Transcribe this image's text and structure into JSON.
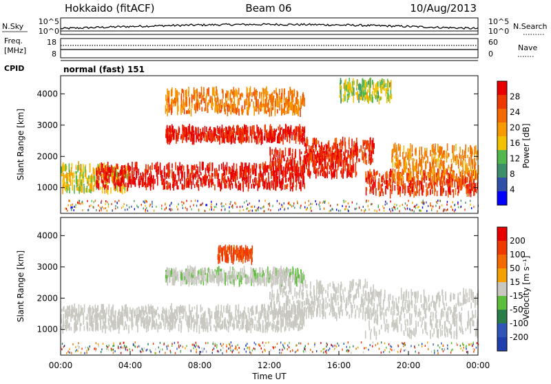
{
  "header": {
    "title": "Hokkaido (fitACF)",
    "beam": "Beam 06",
    "date": "10/Aug/2013"
  },
  "noise_panel": {
    "left_label": "N.Sky",
    "right_label": "N.Search",
    "left_ticks": [
      "10^5",
      "10^0"
    ],
    "right_ticks": [
      "10^5",
      "10^0"
    ]
  },
  "freq_panel": {
    "left_label_line1": "Freq.",
    "left_label_line2": "[MHz]",
    "left_ticks": [
      "18",
      "8"
    ],
    "right_label": "Nave",
    "right_ticks": [
      "60",
      "0"
    ]
  },
  "cpid_panel": {
    "label": "CPID",
    "text": "normal (fast) 151"
  },
  "colors": {
    "power_scale": [
      "#0000ff",
      "#2f4fa8",
      "#3d8f6a",
      "#52b84d",
      "#f2c200",
      "#f79a00",
      "#f26a00",
      "#ee3a00",
      "#e80000"
    ],
    "velocity_scale": [
      "#1f3fae",
      "#2f55b8",
      "#2a7d48",
      "#5cbe3a",
      "#c8c8c0",
      "#f5a000",
      "#f26a00",
      "#ee3a00",
      "#e80000"
    ]
  },
  "chart_data": [
    {
      "type": "heatmap",
      "name": "power",
      "ylabel": "Slant Range [km]",
      "ylim": [
        180,
        4580
      ],
      "xlim": [
        0,
        24
      ],
      "yticks": [
        "1000",
        "2000",
        "3000",
        "4000"
      ],
      "colorbar": {
        "label": "Power [dB]",
        "ticks": [
          "4",
          "8",
          "12",
          "16",
          "20",
          "24",
          "28"
        ],
        "range": [
          0,
          32
        ]
      },
      "regions": [
        {
          "t0": 0.0,
          "t1": 4.0,
          "r0": 900,
          "r1": 1700,
          "level": 16
        },
        {
          "t0": 2.0,
          "t1": 14.0,
          "r0": 1000,
          "r1": 1700,
          "level": 30
        },
        {
          "t0": 12.0,
          "t1": 17.0,
          "r0": 1400,
          "r1": 2200,
          "level": 29
        },
        {
          "t0": 14.0,
          "t1": 18.0,
          "r0": 1800,
          "r1": 2500,
          "level": 28
        },
        {
          "t0": 6.0,
          "t1": 14.0,
          "r0": 2500,
          "r1": 2900,
          "level": 29
        },
        {
          "t0": 6.0,
          "t1": 14.0,
          "r0": 3400,
          "r1": 4100,
          "level": 22
        },
        {
          "t0": 17.5,
          "t1": 24.0,
          "r0": 800,
          "r1": 1500,
          "level": 27
        },
        {
          "t0": 19.0,
          "t1": 24.0,
          "r0": 1300,
          "r1": 2300,
          "level": 21
        },
        {
          "t0": 16.0,
          "t1": 19.0,
          "r0": 3800,
          "r1": 4400,
          "level": 14
        }
      ]
    },
    {
      "type": "heatmap",
      "name": "velocity",
      "ylabel": "Slant Range [km]",
      "xlabel": "Time UT",
      "ylim": [
        180,
        4580
      ],
      "xlim": [
        0,
        24
      ],
      "yticks": [
        "1000",
        "2000",
        "3000",
        "4000"
      ],
      "xticks": [
        "00:00",
        "04:00",
        "08:00",
        "12:00",
        "16:00",
        "20:00",
        "00:00"
      ],
      "colorbar": {
        "label": "Velocity [m s⁻¹]",
        "ticks": [
          "200",
          "100",
          "50",
          "15",
          "-15",
          "-50",
          "-100",
          "-200"
        ],
        "range": [
          -250,
          250
        ]
      },
      "regions": [
        {
          "t0": 0.0,
          "t1": 14.0,
          "r0": 1000,
          "r1": 1700,
          "level": 0
        },
        {
          "t0": 12.0,
          "t1": 18.0,
          "r0": 1400,
          "r1": 2500,
          "level": 0
        },
        {
          "t0": 6.0,
          "t1": 14.0,
          "r0": 2500,
          "r1": 2900,
          "level": -20
        },
        {
          "t0": 9.0,
          "t1": 11.0,
          "r0": 3200,
          "r1": 3600,
          "level": 150
        },
        {
          "t0": 17.5,
          "t1": 24.0,
          "r0": 800,
          "r1": 2200,
          "level": 0
        }
      ]
    }
  ]
}
